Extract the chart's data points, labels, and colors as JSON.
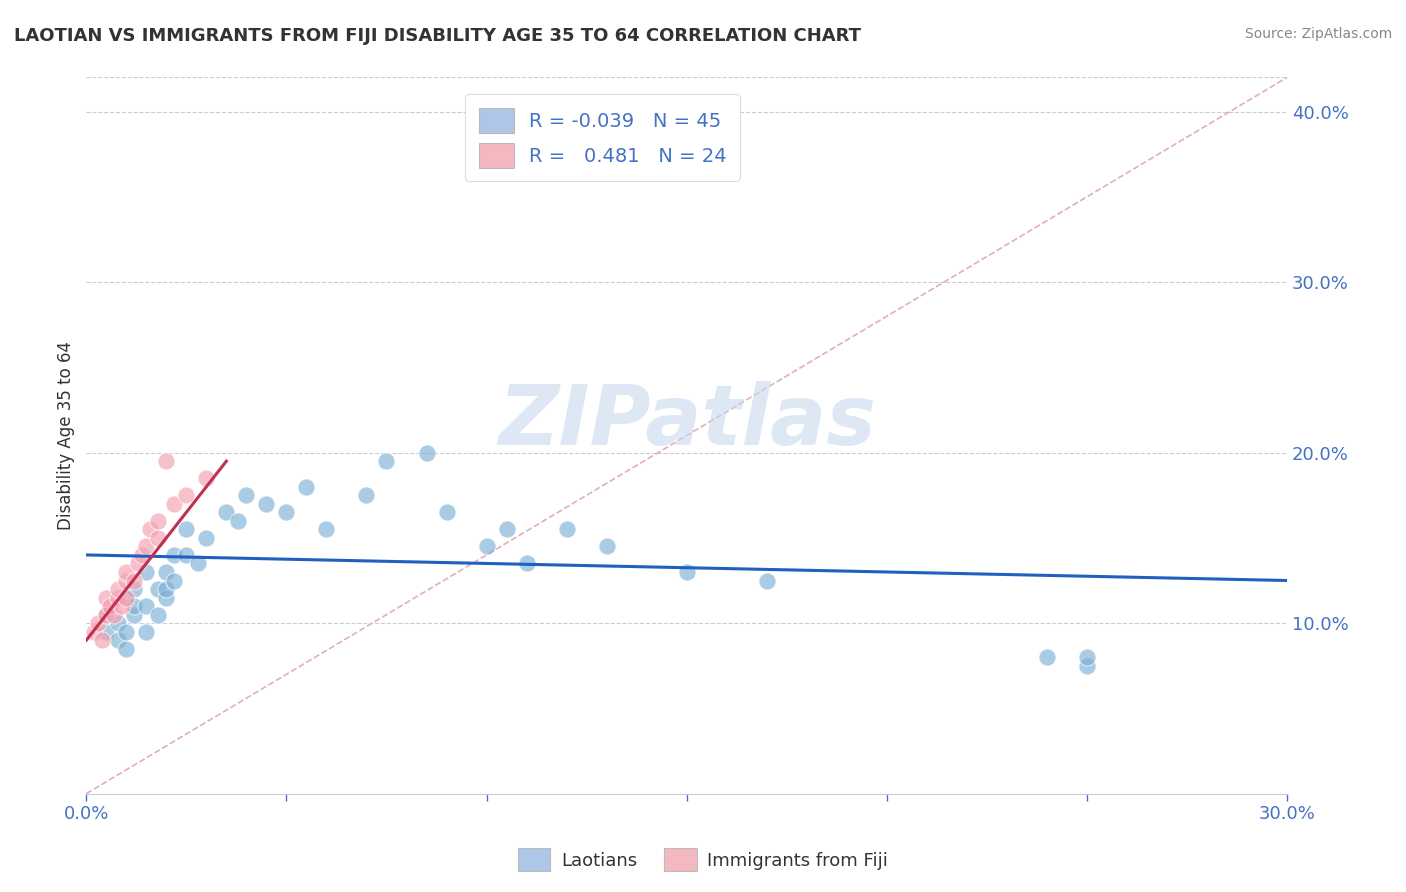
{
  "title": "LAOTIAN VS IMMIGRANTS FROM FIJI DISABILITY AGE 35 TO 64 CORRELATION CHART",
  "source": "Source: ZipAtlas.com",
  "ylabel": "Disability Age 35 to 64",
  "xlim": [
    0.0,
    0.3
  ],
  "ylim": [
    0.0,
    0.42
  ],
  "xticks": [
    0.0,
    0.05,
    0.1,
    0.15,
    0.2,
    0.25,
    0.3
  ],
  "xticklabels": [
    "0.0%",
    "",
    "",
    "",
    "",
    "",
    "30.0%"
  ],
  "right_yticks": [
    0.1,
    0.2,
    0.3,
    0.4
  ],
  "right_yticklabels": [
    "10.0%",
    "20.0%",
    "30.0%",
    "40.0%"
  ],
  "legend_color1": "#aec6e8",
  "legend_color2": "#f4b8c1",
  "watermark": "ZIPatlas",
  "blue_scatter_x": [
    0.005,
    0.005,
    0.008,
    0.008,
    0.01,
    0.01,
    0.01,
    0.012,
    0.012,
    0.012,
    0.015,
    0.015,
    0.015,
    0.018,
    0.018,
    0.02,
    0.02,
    0.02,
    0.022,
    0.022,
    0.025,
    0.025,
    0.028,
    0.03,
    0.035,
    0.038,
    0.04,
    0.045,
    0.05,
    0.055,
    0.06,
    0.07,
    0.075,
    0.085,
    0.09,
    0.1,
    0.105,
    0.11,
    0.12,
    0.13,
    0.15,
    0.17,
    0.24,
    0.25,
    0.25
  ],
  "blue_scatter_y": [
    0.095,
    0.105,
    0.09,
    0.1,
    0.085,
    0.095,
    0.115,
    0.105,
    0.12,
    0.11,
    0.095,
    0.11,
    0.13,
    0.105,
    0.12,
    0.115,
    0.13,
    0.12,
    0.14,
    0.125,
    0.14,
    0.155,
    0.135,
    0.15,
    0.165,
    0.16,
    0.175,
    0.17,
    0.165,
    0.18,
    0.155,
    0.175,
    0.195,
    0.2,
    0.165,
    0.145,
    0.155,
    0.135,
    0.155,
    0.145,
    0.13,
    0.125,
    0.08,
    0.075,
    0.08
  ],
  "pink_scatter_x": [
    0.002,
    0.003,
    0.004,
    0.005,
    0.005,
    0.006,
    0.007,
    0.008,
    0.008,
    0.009,
    0.01,
    0.01,
    0.01,
    0.012,
    0.013,
    0.014,
    0.015,
    0.016,
    0.018,
    0.018,
    0.02,
    0.022,
    0.025,
    0.03
  ],
  "pink_scatter_y": [
    0.095,
    0.1,
    0.09,
    0.105,
    0.115,
    0.11,
    0.105,
    0.115,
    0.12,
    0.11,
    0.115,
    0.125,
    0.13,
    0.125,
    0.135,
    0.14,
    0.145,
    0.155,
    0.15,
    0.16,
    0.195,
    0.17,
    0.175,
    0.185
  ],
  "blue_line_x": [
    0.0,
    0.3
  ],
  "blue_line_y": [
    0.14,
    0.125
  ],
  "pink_line_x": [
    0.0,
    0.035
  ],
  "pink_line_y": [
    0.09,
    0.195
  ],
  "diag_line_x": [
    0.0,
    0.3
  ],
  "diag_line_y": [
    0.0,
    0.42
  ],
  "scatter_color_blue": "#7bafd4",
  "scatter_color_pink": "#f4a0b0",
  "trend_color_blue": "#2060c0",
  "trend_color_pink": "#c03050",
  "diag_color": "#e0b0b8",
  "grid_color": "#cccccc",
  "title_color": "#333333",
  "axis_color": "#4472c4",
  "bg_color": "#ffffff"
}
